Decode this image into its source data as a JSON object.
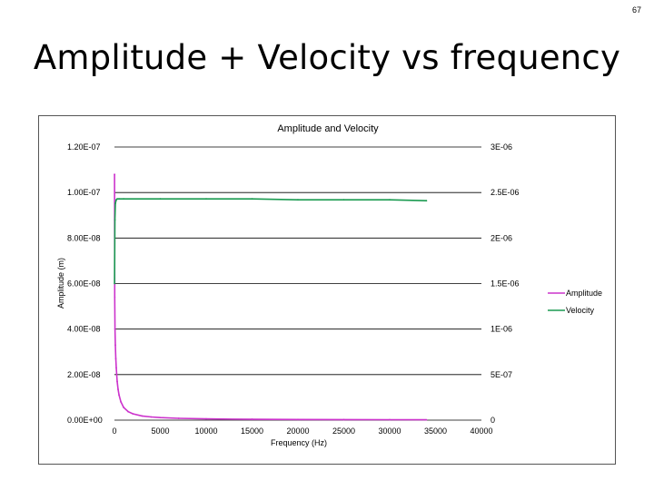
{
  "page_number": "67",
  "slide_title": "Amplitude + Velocity vs frequency",
  "colors": {
    "amplitude": "#cc33cc",
    "velocity": "#1a9a50",
    "gridline": "#000000",
    "frame": "#555555"
  },
  "chart_data": {
    "type": "line",
    "title": "Amplitude and Velocity",
    "xlabel": "Frequency (Hz)",
    "ylabel": "Amplitude (m)",
    "y2label": "",
    "xlim": [
      0,
      40000
    ],
    "ylim": [
      0,
      1.2e-07
    ],
    "y2lim": [
      0,
      3e-06
    ],
    "x_ticks": [
      "0",
      "5000",
      "10000",
      "15000",
      "20000",
      "25000",
      "30000",
      "35000",
      "40000"
    ],
    "y_ticks": [
      "0.00E+00",
      "2.00E-08",
      "4.00E-08",
      "6.00E-08",
      "8.00E-08",
      "1.00E-07",
      "1.20E-07"
    ],
    "y2_ticks": [
      "0",
      "5E-07",
      "1E-06",
      "1.5E-06",
      "2E-06",
      "2.5E-06",
      "3E-06"
    ],
    "grid": "horizontal",
    "legend_position": "right",
    "series": [
      {
        "name": "Amplitude",
        "axis": "left",
        "x": [
          10,
          30,
          60,
          100,
          150,
          200,
          300,
          400,
          500,
          700,
          1000,
          1500,
          2000,
          3000,
          4000,
          5000,
          7000,
          10000,
          15000,
          20000,
          25000,
          30000,
          34000
        ],
        "y": [
          1.08e-07,
          5.4e-08,
          4e-08,
          3.3e-08,
          2.7e-08,
          2.3e-08,
          1.7e-08,
          1.35e-08,
          1.1e-08,
          8e-09,
          5.6e-09,
          3.7e-09,
          2.8e-09,
          1.85e-09,
          1.4e-09,
          1.1e-09,
          8e-10,
          5.6e-10,
          3.7e-10,
          2.8e-10,
          2.2e-10,
          1.85e-10,
          1.6e-10
        ]
      },
      {
        "name": "Velocity",
        "axis": "right",
        "x": [
          10,
          50,
          100,
          200,
          300,
          500,
          1000,
          5000,
          10000,
          15000,
          20000,
          25000,
          30000,
          34000
        ],
        "y": [
          1.5e-06,
          2.2e-06,
          2.38e-06,
          2.42e-06,
          2.43e-06,
          2.43e-06,
          2.43e-06,
          2.43e-06,
          2.43e-06,
          2.43e-06,
          2.42e-06,
          2.42e-06,
          2.42e-06,
          2.41e-06
        ]
      }
    ]
  }
}
